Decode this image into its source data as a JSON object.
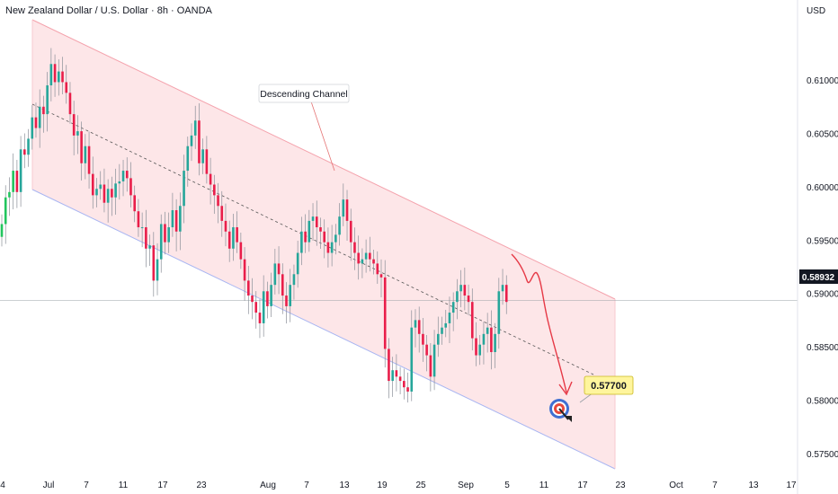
{
  "chart_data": {
    "type": "candlestick",
    "title": "New Zealand Dollar / U.S. Dollar · 8h · OANDA",
    "currency": "USD",
    "y_ticks": [
      "0.61000",
      "0.60500",
      "0.60000",
      "0.59500",
      "0.59000",
      "0.58500",
      "0.58000",
      "0.57500"
    ],
    "y_tick_values": [
      0.61,
      0.605,
      0.6,
      0.595,
      0.59,
      0.585,
      0.58,
      0.575
    ],
    "ylim": [
      0.5712,
      0.6175
    ],
    "x_ticks": [
      "4",
      "Jul",
      "7",
      "11",
      "17",
      "23",
      "Aug",
      "7",
      "13",
      "19",
      "25",
      "Sep",
      "5",
      "11",
      "17",
      "23",
      "Oct",
      "7",
      "13",
      "17"
    ],
    "current_price": "0.58932",
    "current_price_value": 0.58932,
    "target_price": "0.57700",
    "target_price_value": 0.577,
    "annotation": "Descending Channel",
    "colors": {
      "up": "#26a69a",
      "down": "#ef5350",
      "up_bright": "#22c55e",
      "down_strong": "#e91e4a",
      "channel_fill": "#fde2e4",
      "channel_upper": "#f4a3ad",
      "channel_lower": "#a7b4f0",
      "projection": "#e63946",
      "target_label_bg": "#fff59d"
    },
    "series": [
      {
        "candles_close": [
          0.5965,
          0.599,
          0.5995,
          0.6015,
          0.5995,
          0.6035,
          0.603,
          0.6045,
          0.6065,
          0.6055,
          0.6075,
          0.6068,
          0.6095,
          0.6115,
          0.6098,
          0.6108,
          0.6098,
          0.6088,
          0.6068,
          0.6048,
          0.6052,
          0.6022,
          0.6038,
          0.6012,
          0.5992,
          0.5998,
          0.6002,
          0.5985,
          0.5998,
          0.599,
          0.6003,
          0.6005,
          0.6015,
          0.6008,
          0.5992,
          0.5977,
          0.5962,
          0.5962,
          0.5942,
          0.5945,
          0.5912,
          0.5932,
          0.5965,
          0.5948,
          0.5962,
          0.5978,
          0.5958,
          0.5982,
          0.6015,
          0.6038,
          0.6048,
          0.6062,
          0.6022,
          0.6035,
          0.6012,
          0.6002,
          0.5992,
          0.5982,
          0.5968,
          0.5958,
          0.5942,
          0.5962,
          0.5948,
          0.5932,
          0.5912,
          0.5898,
          0.5892,
          0.5882,
          0.5872,
          0.5902,
          0.5888,
          0.5908,
          0.5928,
          0.5918,
          0.5898,
          0.5888,
          0.5908,
          0.5918,
          0.5938,
          0.5958,
          0.5948,
          0.5968,
          0.5972,
          0.5962,
          0.5958,
          0.5948,
          0.5938,
          0.5948,
          0.5955,
          0.5972,
          0.5988,
          0.5968,
          0.5948,
          0.5938,
          0.5928,
          0.5932,
          0.5938,
          0.5932,
          0.5928,
          0.5918,
          0.5915,
          0.5848,
          0.5818,
          0.5828,
          0.5822,
          0.5818,
          0.5812,
          0.5808,
          0.5868,
          0.5875,
          0.5862,
          0.5852,
          0.5842,
          0.5822,
          0.5852,
          0.5862,
          0.5868,
          0.5872,
          0.5882,
          0.5892,
          0.5902,
          0.5908,
          0.5898,
          0.5892,
          0.5858,
          0.5842,
          0.5852,
          0.5862,
          0.5868,
          0.5845,
          0.5862,
          0.5902,
          0.5908,
          0.5892
        ]
      }
    ]
  }
}
